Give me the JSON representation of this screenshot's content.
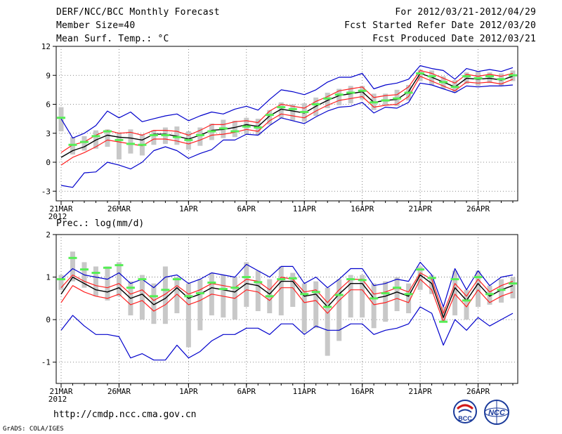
{
  "header": {
    "title": "DERF/NCC/BCC Monthly Forecast",
    "member": "Member Size=40",
    "variable": "Mean Surf. Temp.: °C",
    "period": "For 2012/03/21-2012/04/29",
    "start": "Fcst Started Refer Date 2012/03/20",
    "produced": "Fcst Produced Date 2012/03/21"
  },
  "footer": {
    "url": "http://cmdp.ncc.cma.gov.cn",
    "credit": "GrADS: COLA/IGES"
  },
  "logos": {
    "bcc": "BCC",
    "ncc": "NCC"
  },
  "colors": {
    "ensemble": "#000000",
    "ci": "#ff2020",
    "range": "#0000cc",
    "obs": "#55ee55",
    "bar": "#c8c8c8"
  },
  "chart_data": [
    {
      "type": "line",
      "title": "Mean Surf. Temp.: °C",
      "x_labels": [
        "21MAR",
        "26MAR",
        "1APR",
        "6APR",
        "11APR",
        "16APR",
        "21APR",
        "26APR"
      ],
      "x_label_days": [
        1,
        6,
        12,
        17,
        22,
        27,
        32,
        37
      ],
      "year_label": "2012",
      "ylim": [
        -4,
        12
      ],
      "yticks": [
        -3,
        0,
        3,
        6,
        9,
        12
      ],
      "days": [
        1,
        2,
        3,
        4,
        5,
        6,
        7,
        8,
        9,
        10,
        11,
        12,
        13,
        14,
        15,
        16,
        17,
        18,
        19,
        20,
        21,
        22,
        23,
        24,
        25,
        26,
        27,
        28,
        29,
        30,
        31,
        32,
        33,
        34,
        35,
        36,
        37,
        38,
        39,
        40
      ],
      "series": [
        {
          "name": "ensemble_mean",
          "values": [
            0.5,
            1.2,
            1.6,
            2.3,
            2.8,
            2.6,
            2.5,
            2.3,
            2.9,
            2.9,
            2.7,
            2.4,
            2.8,
            3.3,
            3.4,
            3.6,
            3.9,
            3.7,
            4.8,
            5.5,
            5.3,
            5.1,
            5.8,
            6.4,
            6.9,
            7.1,
            7.3,
            6.2,
            6.4,
            6.5,
            7.3,
            9.2,
            8.8,
            8.3,
            7.8,
            8.7,
            8.6,
            8.7,
            8.5,
            8.9
          ]
        },
        {
          "name": "upper_ci",
          "values": [
            1.0,
            1.8,
            2.1,
            2.8,
            3.3,
            3.0,
            3.1,
            2.8,
            3.3,
            3.3,
            3.2,
            2.8,
            3.3,
            3.9,
            3.9,
            4.2,
            4.3,
            4.1,
            5.3,
            6.0,
            5.8,
            5.6,
            6.3,
            6.8,
            7.4,
            7.6,
            7.8,
            6.7,
            6.9,
            7.0,
            7.8,
            9.5,
            9.2,
            8.7,
            8.2,
            9.1,
            8.9,
            9.1,
            8.9,
            9.2
          ]
        },
        {
          "name": "lower_ci",
          "values": [
            -0.3,
            0.5,
            1.0,
            1.6,
            2.3,
            2.1,
            1.9,
            1.7,
            2.4,
            2.4,
            2.2,
            1.9,
            2.3,
            2.8,
            2.9,
            3.1,
            3.4,
            3.2,
            4.3,
            5.0,
            4.8,
            4.6,
            5.3,
            5.9,
            6.4,
            6.6,
            6.8,
            5.7,
            5.9,
            6.0,
            6.8,
            8.9,
            8.4,
            7.9,
            7.4,
            8.3,
            8.2,
            8.3,
            8.1,
            8.6
          ]
        },
        {
          "name": "ensemble_max",
          "values": [
            4.5,
            2.5,
            3.0,
            3.8,
            5.3,
            4.6,
            5.2,
            4.2,
            4.5,
            4.8,
            5.0,
            4.3,
            4.8,
            5.2,
            5.0,
            5.5,
            5.8,
            5.4,
            6.5,
            7.5,
            7.3,
            7.0,
            7.5,
            8.3,
            8.8,
            8.8,
            9.2,
            7.6,
            8.0,
            8.2,
            8.6,
            10.0,
            9.7,
            9.5,
            8.6,
            9.7,
            9.4,
            9.6,
            9.4,
            9.8
          ]
        },
        {
          "name": "ensemble_min",
          "values": [
            -2.4,
            -2.6,
            -1.1,
            -1.0,
            0.0,
            -0.3,
            -0.7,
            0.0,
            1.2,
            1.6,
            1.2,
            0.4,
            0.9,
            1.3,
            2.3,
            2.3,
            2.9,
            2.8,
            3.8,
            4.6,
            4.3,
            4.0,
            4.7,
            5.3,
            5.7,
            5.8,
            6.2,
            5.1,
            5.7,
            5.6,
            6.2,
            8.2,
            8.0,
            7.6,
            7.2,
            7.9,
            7.8,
            7.9,
            7.9,
            8.0
          ]
        },
        {
          "name": "observed",
          "values": [
            4.6,
            1.8,
            2.1,
            2.7,
            3.2,
            2.3,
            1.9,
            1.8,
            2.8,
            2.8,
            2.6,
            2.3,
            2.8,
            3.2,
            3.5,
            3.2,
            3.7,
            3.6,
            4.9,
            5.7,
            5.5,
            5.2,
            6.0,
            6.6,
            7.0,
            7.2,
            7.4,
            6.2,
            6.4,
            6.6,
            7.2,
            9.2,
            8.9,
            8.3,
            7.8,
            8.9,
            8.7,
            8.9,
            8.6,
            9.0
          ]
        }
      ],
      "bars": {
        "low": [
          3.2,
          0.8,
          1.2,
          1.4,
          1.6,
          0.3,
          0.9,
          0.7,
          1.8,
          1.9,
          1.8,
          1.3,
          1.7,
          2.3,
          2.5,
          2.6,
          2.9,
          2.8,
          3.9,
          4.6,
          4.3,
          4.2,
          4.8,
          5.6,
          5.9,
          6.1,
          6.5,
          5.4,
          5.9,
          5.8,
          6.4,
          8.4,
          8.0,
          7.6,
          7.2,
          8.1,
          7.9,
          8.2,
          7.9,
          8.4
        ],
        "high": [
          5.7,
          2.6,
          2.7,
          3.3,
          3.4,
          3.1,
          3.4,
          2.9,
          3.3,
          3.6,
          3.7,
          3.2,
          3.6,
          4.0,
          4.4,
          4.3,
          4.6,
          4.5,
          5.4,
          6.2,
          6.0,
          6.1,
          6.7,
          7.2,
          7.6,
          7.9,
          7.9,
          7.1,
          7.1,
          7.5,
          8.0,
          9.6,
          9.5,
          8.9,
          8.5,
          9.3,
          9.4,
          9.3,
          9.2,
          9.5
        ]
      }
    },
    {
      "type": "line",
      "title": "Prec.: log(mm/d)",
      "x_labels": [
        "21MAR",
        "26MAR",
        "1APR",
        "6APR",
        "11APR",
        "16APR",
        "21APR",
        "26APR"
      ],
      "x_label_days": [
        1,
        6,
        12,
        17,
        22,
        27,
        32,
        37
      ],
      "year_label": "2012",
      "ylim": [
        -1.5,
        2
      ],
      "yticks": [
        -1,
        0,
        1,
        2
      ],
      "days": [
        1,
        2,
        3,
        4,
        5,
        6,
        7,
        8,
        9,
        10,
        11,
        12,
        13,
        14,
        15,
        16,
        17,
        18,
        19,
        20,
        21,
        22,
        23,
        24,
        25,
        26,
        27,
        28,
        29,
        30,
        31,
        32,
        33,
        34,
        35,
        36,
        37,
        38,
        39,
        40
      ],
      "series": [
        {
          "name": "ensemble_mean",
          "values": [
            0.6,
            1.0,
            0.85,
            0.7,
            0.65,
            0.75,
            0.5,
            0.6,
            0.35,
            0.5,
            0.75,
            0.5,
            0.6,
            0.75,
            0.7,
            0.65,
            0.85,
            0.8,
            0.6,
            0.9,
            0.9,
            0.55,
            0.6,
            0.3,
            0.6,
            0.85,
            0.85,
            0.5,
            0.55,
            0.65,
            0.55,
            1.05,
            0.85,
            0.05,
            0.75,
            0.45,
            0.85,
            0.55,
            0.7,
            0.8
          ]
        },
        {
          "name": "upper_ci",
          "values": [
            0.75,
            1.05,
            0.9,
            0.8,
            0.75,
            0.85,
            0.6,
            0.7,
            0.45,
            0.6,
            0.8,
            0.6,
            0.7,
            0.85,
            0.8,
            0.75,
            0.95,
            0.9,
            0.7,
            1.0,
            0.95,
            0.65,
            0.7,
            0.4,
            0.7,
            0.95,
            0.95,
            0.6,
            0.65,
            0.75,
            0.65,
            1.1,
            0.95,
            0.15,
            0.85,
            0.55,
            0.95,
            0.65,
            0.8,
            0.9
          ]
        },
        {
          "name": "lower_ci",
          "values": [
            0.4,
            0.8,
            0.65,
            0.55,
            0.5,
            0.6,
            0.35,
            0.45,
            0.2,
            0.35,
            0.6,
            0.35,
            0.45,
            0.6,
            0.55,
            0.5,
            0.7,
            0.65,
            0.45,
            0.75,
            0.75,
            0.4,
            0.45,
            0.15,
            0.45,
            0.7,
            0.7,
            0.35,
            0.4,
            0.5,
            0.4,
            0.95,
            0.7,
            -0.05,
            0.6,
            0.3,
            0.7,
            0.4,
            0.55,
            0.65
          ]
        },
        {
          "name": "ensemble_max",
          "values": [
            0.95,
            1.2,
            1.05,
            1.0,
            0.95,
            1.1,
            0.85,
            0.95,
            0.75,
            1.0,
            1.05,
            0.85,
            0.95,
            1.1,
            1.05,
            1.0,
            1.3,
            1.15,
            1.0,
            1.25,
            1.25,
            0.85,
            1.0,
            0.75,
            0.95,
            1.2,
            1.2,
            0.8,
            0.85,
            0.95,
            0.9,
            1.35,
            1.05,
            0.3,
            1.2,
            0.7,
            1.15,
            0.8,
            1.0,
            1.05
          ]
        },
        {
          "name": "ensemble_min",
          "values": [
            -0.25,
            0.1,
            -0.15,
            -0.35,
            -0.35,
            -0.4,
            -0.9,
            -0.8,
            -0.95,
            -0.95,
            -0.6,
            -0.9,
            -0.75,
            -0.5,
            -0.35,
            -0.35,
            -0.2,
            -0.2,
            -0.35,
            -0.1,
            -0.1,
            -0.35,
            -0.15,
            -0.25,
            -0.25,
            -0.1,
            -0.1,
            -0.35,
            -0.25,
            -0.2,
            -0.1,
            0.3,
            0.15,
            -0.6,
            0.0,
            -0.25,
            0.05,
            -0.15,
            0.0,
            0.15
          ]
        },
        {
          "name": "observed",
          "values": [
            0.95,
            1.45,
            1.18,
            1.1,
            1.22,
            1.28,
            0.75,
            0.95,
            0.55,
            0.7,
            0.95,
            0.55,
            0.62,
            0.87,
            0.72,
            0.75,
            1.0,
            0.88,
            0.55,
            0.95,
            0.97,
            0.6,
            0.65,
            0.3,
            0.58,
            0.95,
            0.93,
            0.5,
            0.62,
            0.75,
            0.6,
            1.18,
            0.98,
            -0.05,
            0.95,
            0.45,
            1.0,
            0.6,
            0.7,
            0.85
          ]
        }
      ],
      "bars": {
        "low": [
          0.7,
          0.9,
          0.75,
          0.55,
          0.45,
          0.55,
          0.1,
          0.0,
          -0.1,
          -0.1,
          0.15,
          -0.65,
          -0.25,
          0.1,
          0.05,
          0.0,
          0.3,
          0.2,
          0.15,
          0.1,
          0.3,
          -0.3,
          -0.2,
          -0.85,
          -0.5,
          0.05,
          0.05,
          -0.2,
          -0.05,
          0.2,
          0.15,
          0.7,
          0.6,
          -0.05,
          0.1,
          0.0,
          0.3,
          0.35,
          0.4,
          0.5
        ],
        "high": [
          1.05,
          1.6,
          1.35,
          1.25,
          1.25,
          1.35,
          0.9,
          1.05,
          0.85,
          1.25,
          1.0,
          0.85,
          0.95,
          1.1,
          1.05,
          1.0,
          1.35,
          1.15,
          0.95,
          1.25,
          1.1,
          0.85,
          0.9,
          0.75,
          0.95,
          1.05,
          1.05,
          0.85,
          0.9,
          1.0,
          0.85,
          1.25,
          1.05,
          0.3,
          1.15,
          0.7,
          1.15,
          0.8,
          0.95,
          1.0
        ]
      }
    }
  ]
}
